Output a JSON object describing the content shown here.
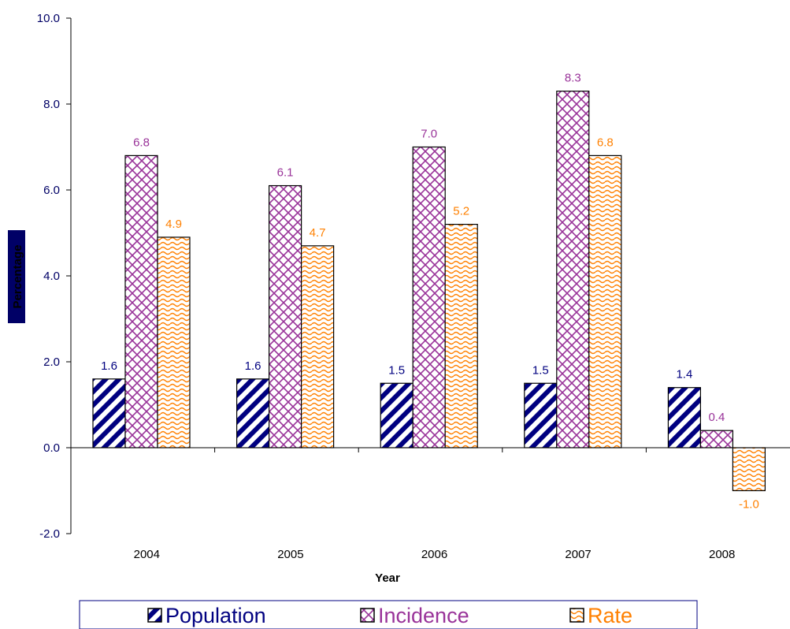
{
  "chart_data": {
    "type": "bar",
    "title": "",
    "xlabel": "Year",
    "ylabel": "Percentage",
    "categories": [
      "2004",
      "2005",
      "2006",
      "2007",
      "2008"
    ],
    "ylim": [
      -2.0,
      10.0
    ],
    "yticks": [
      "-2.0",
      "0.0",
      "2.0",
      "4.0",
      "6.0",
      "8.0",
      "10.0"
    ],
    "grid": false,
    "legend_position": "bottom",
    "series": [
      {
        "name": "Population",
        "values": [
          1.6,
          1.6,
          1.5,
          1.5,
          1.4
        ],
        "labels": [
          "1.6",
          "1.6",
          "1.5",
          "1.5",
          "1.4"
        ],
        "color": "#000080",
        "pattern": "diagonal-stripes"
      },
      {
        "name": "Incidence",
        "values": [
          6.8,
          6.1,
          7.0,
          8.3,
          0.4
        ],
        "labels": [
          "6.8",
          "6.1",
          "7.0",
          "8.3",
          "0.4"
        ],
        "color": "#993399",
        "pattern": "crosshatch"
      },
      {
        "name": "Rate",
        "values": [
          4.9,
          4.7,
          5.2,
          6.8,
          -1.0
        ],
        "labels": [
          "4.9",
          "4.7",
          "5.2",
          "6.8",
          "-1.0"
        ],
        "color": "#ff8000",
        "pattern": "waves"
      }
    ]
  }
}
